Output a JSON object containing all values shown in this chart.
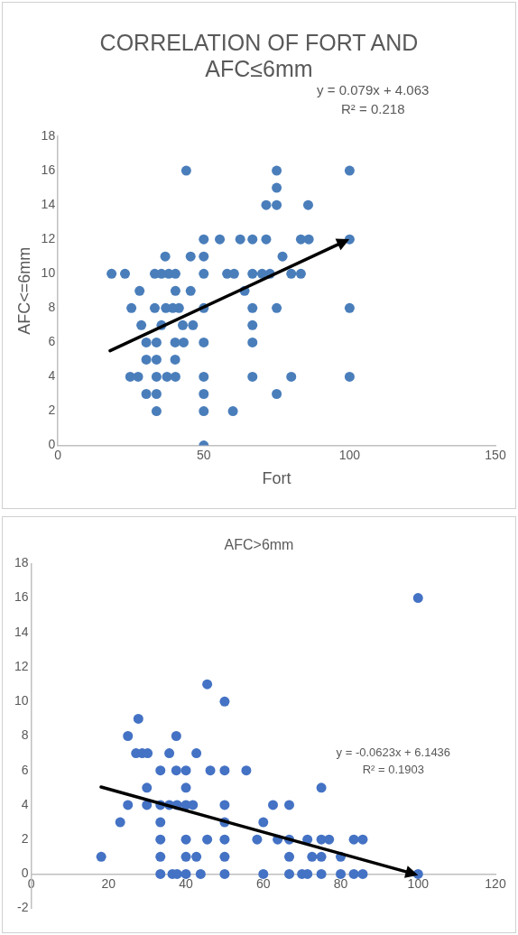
{
  "chart_data": [
    {
      "type": "scatter",
      "title": "CORRELATION OF FORT AND AFC≤6mm",
      "xlabel": "Fort",
      "ylabel": "AFC<=6mm",
      "xlim": [
        0,
        150
      ],
      "xticks": [
        0,
        50,
        100,
        150
      ],
      "ylim": [
        0,
        18
      ],
      "yticks": [
        0,
        2,
        4,
        6,
        8,
        10,
        12,
        14,
        16,
        18
      ],
      "grid": false,
      "legend": false,
      "marker": "circle",
      "annotations": [
        "y = 0.079x + 4.063",
        "R² = 0.218"
      ],
      "series": [
        {
          "type": "scatter",
          "color": "#4a7ebb",
          "x": [
            44,
            75,
            100,
            75,
            71.4,
            75,
            85.8,
            50,
            55.5,
            62.5,
            66.7,
            71.4,
            83.3,
            86,
            100,
            36.8,
            45.5,
            50,
            77,
            18.4,
            23,
            33.2,
            35.5,
            38,
            40.3,
            50,
            58,
            60.4,
            66.7,
            70,
            72.7,
            80,
            83.3,
            28,
            40.3,
            45.5,
            64,
            25.2,
            33.2,
            37,
            39.4,
            41.5,
            50,
            66.7,
            75,
            100,
            28.6,
            35.5,
            42.8,
            46.3,
            66.7,
            30.3,
            33.8,
            40.2,
            43.1,
            50,
            66.7,
            30.3,
            33.8,
            40.2,
            24.8,
            27.5,
            33.8,
            37.4,
            40.3,
            50,
            66.7,
            80,
            100,
            30.3,
            33.8,
            50,
            75,
            33.8,
            50,
            60,
            50
          ],
          "values": [
            16,
            16,
            16,
            15,
            14,
            14,
            14,
            12,
            12,
            12,
            12,
            12,
            12,
            12,
            12,
            11,
            11,
            11,
            11,
            10,
            10,
            10,
            10,
            10,
            10,
            10,
            10,
            10,
            10,
            10,
            10,
            10,
            10,
            9,
            9,
            9,
            9,
            8,
            8,
            8,
            8,
            8,
            8,
            8,
            8,
            8,
            7,
            7,
            7,
            7,
            7,
            6,
            6,
            6,
            6,
            6,
            6,
            5,
            5,
            5,
            4,
            4,
            4,
            4,
            4,
            4,
            4,
            4,
            4,
            3,
            3,
            3,
            3,
            2,
            2,
            2,
            0
          ]
        }
      ]
    },
    {
      "type": "scatter",
      "title": "AFC>6mm",
      "xlim": [
        0,
        120
      ],
      "xticks": [
        0,
        20,
        40,
        60,
        80,
        100,
        120
      ],
      "ylim": [
        -2,
        18
      ],
      "yticks": [
        -2,
        0,
        2,
        4,
        6,
        8,
        10,
        12,
        14,
        16,
        18
      ],
      "grid": false,
      "legend": false,
      "marker": "circle",
      "annotations": [
        "y = -0.0623x + 6.1436",
        "R² = 0.1903"
      ],
      "series": [
        {
          "type": "scatter",
          "color": "#4472c4",
          "x": [
            100,
            45.5,
            50,
            27.7,
            25,
            37.5,
            27.1,
            28.7,
            30.1,
            35.7,
            42.7,
            33.4,
            37.5,
            40,
            46.3,
            50,
            55.6,
            29.9,
            40,
            75,
            25,
            29.9,
            33.4,
            35.7,
            37.7,
            40,
            41.8,
            50,
            62.5,
            66.7,
            23,
            33.4,
            50,
            60,
            33.4,
            40,
            45.5,
            50,
            58.4,
            63.7,
            66.7,
            71.4,
            75,
            77,
            83.4,
            85.7,
            18.1,
            33.4,
            40,
            42.7,
            50,
            66.7,
            72.6,
            75,
            80,
            33.4,
            36.5,
            37.7,
            40,
            43.8,
            50,
            60,
            66.7,
            70,
            71.4,
            75,
            80,
            83.4,
            85.7,
            100
          ],
          "values": [
            16,
            11,
            10,
            9,
            8,
            8,
            7,
            7,
            7,
            7,
            7,
            6,
            6,
            6,
            6,
            6,
            6,
            5,
            5,
            5,
            4,
            4,
            4,
            4,
            4,
            4,
            4,
            4,
            4,
            4,
            3,
            3,
            3,
            3,
            2,
            2,
            2,
            2,
            2,
            2,
            2,
            2,
            2,
            2,
            2,
            2,
            1,
            1,
            1,
            1,
            1,
            1,
            1,
            1,
            1,
            0,
            0,
            0,
            0,
            0,
            0,
            0,
            0,
            0,
            0,
            0,
            0,
            0,
            0,
            0
          ]
        }
      ]
    }
  ]
}
